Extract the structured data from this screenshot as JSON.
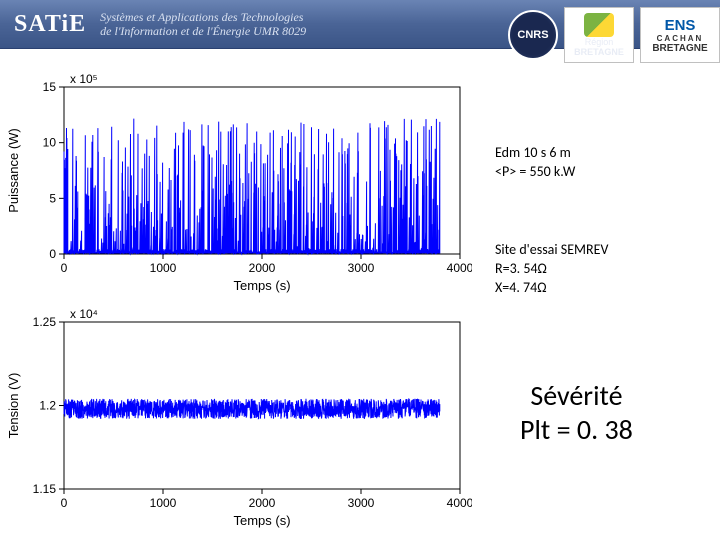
{
  "header": {
    "brand": "SATiE",
    "subtitle1": "Systèmes et Applications des Technologies",
    "subtitle2": "de l'Information et de l'Énergie   UMR 8029",
    "logos": {
      "cnrs": "CNRS",
      "region": "Région",
      "bretagne": "BRETAGNE",
      "ens1": "ENS",
      "ens2": "CACHAN",
      "ens3": "BRETAGNE"
    }
  },
  "annot1": {
    "l1": "Edm 10 s 6 m",
    "l2": "<P> = 550 k.W"
  },
  "annot2": {
    "l1": "Site d'essai SEMREV",
    "l2": "R=3. 54Ω",
    "l3": "X=4. 74Ω"
  },
  "severite": {
    "l1": "Sévérité",
    "l2": "Plt = 0. 38"
  },
  "chart1": {
    "type": "line",
    "ylabel": "Puissance (W)",
    "xlabel": "Temps (s)",
    "ylim": [
      0,
      15
    ],
    "xtlim": [
      0,
      4000
    ],
    "yticks": [
      0,
      5,
      10,
      15
    ],
    "xticks": [
      0,
      1000,
      2000,
      3000,
      4000
    ],
    "multiplier": "x 10⁵",
    "series_color": "#0000ff",
    "axis_color": "#000000",
    "background_color": "#ffffff",
    "tick_fontsize": 12,
    "label_fontsize": 13,
    "line_width": 1,
    "data_xmax": 3800,
    "data_ymax": 12.2,
    "data_ymin": 0.05
  },
  "chart2": {
    "type": "line",
    "ylabel": "Tension (V)",
    "xlabel": "Temps (s)",
    "ylim": [
      1.15,
      1.25
    ],
    "xtlim": [
      0,
      4000
    ],
    "yticks": [
      1.15,
      1.2,
      1.25
    ],
    "xticks": [
      0,
      1000,
      2000,
      3000,
      4000
    ],
    "multiplier": "x 10⁴",
    "series_color": "#0000ff",
    "axis_color": "#000000",
    "background_color": "#ffffff",
    "tick_fontsize": 12,
    "label_fontsize": 13,
    "line_width": 1,
    "data_xmax": 3800,
    "data_ycenter": 1.198,
    "data_band": 0.012
  }
}
